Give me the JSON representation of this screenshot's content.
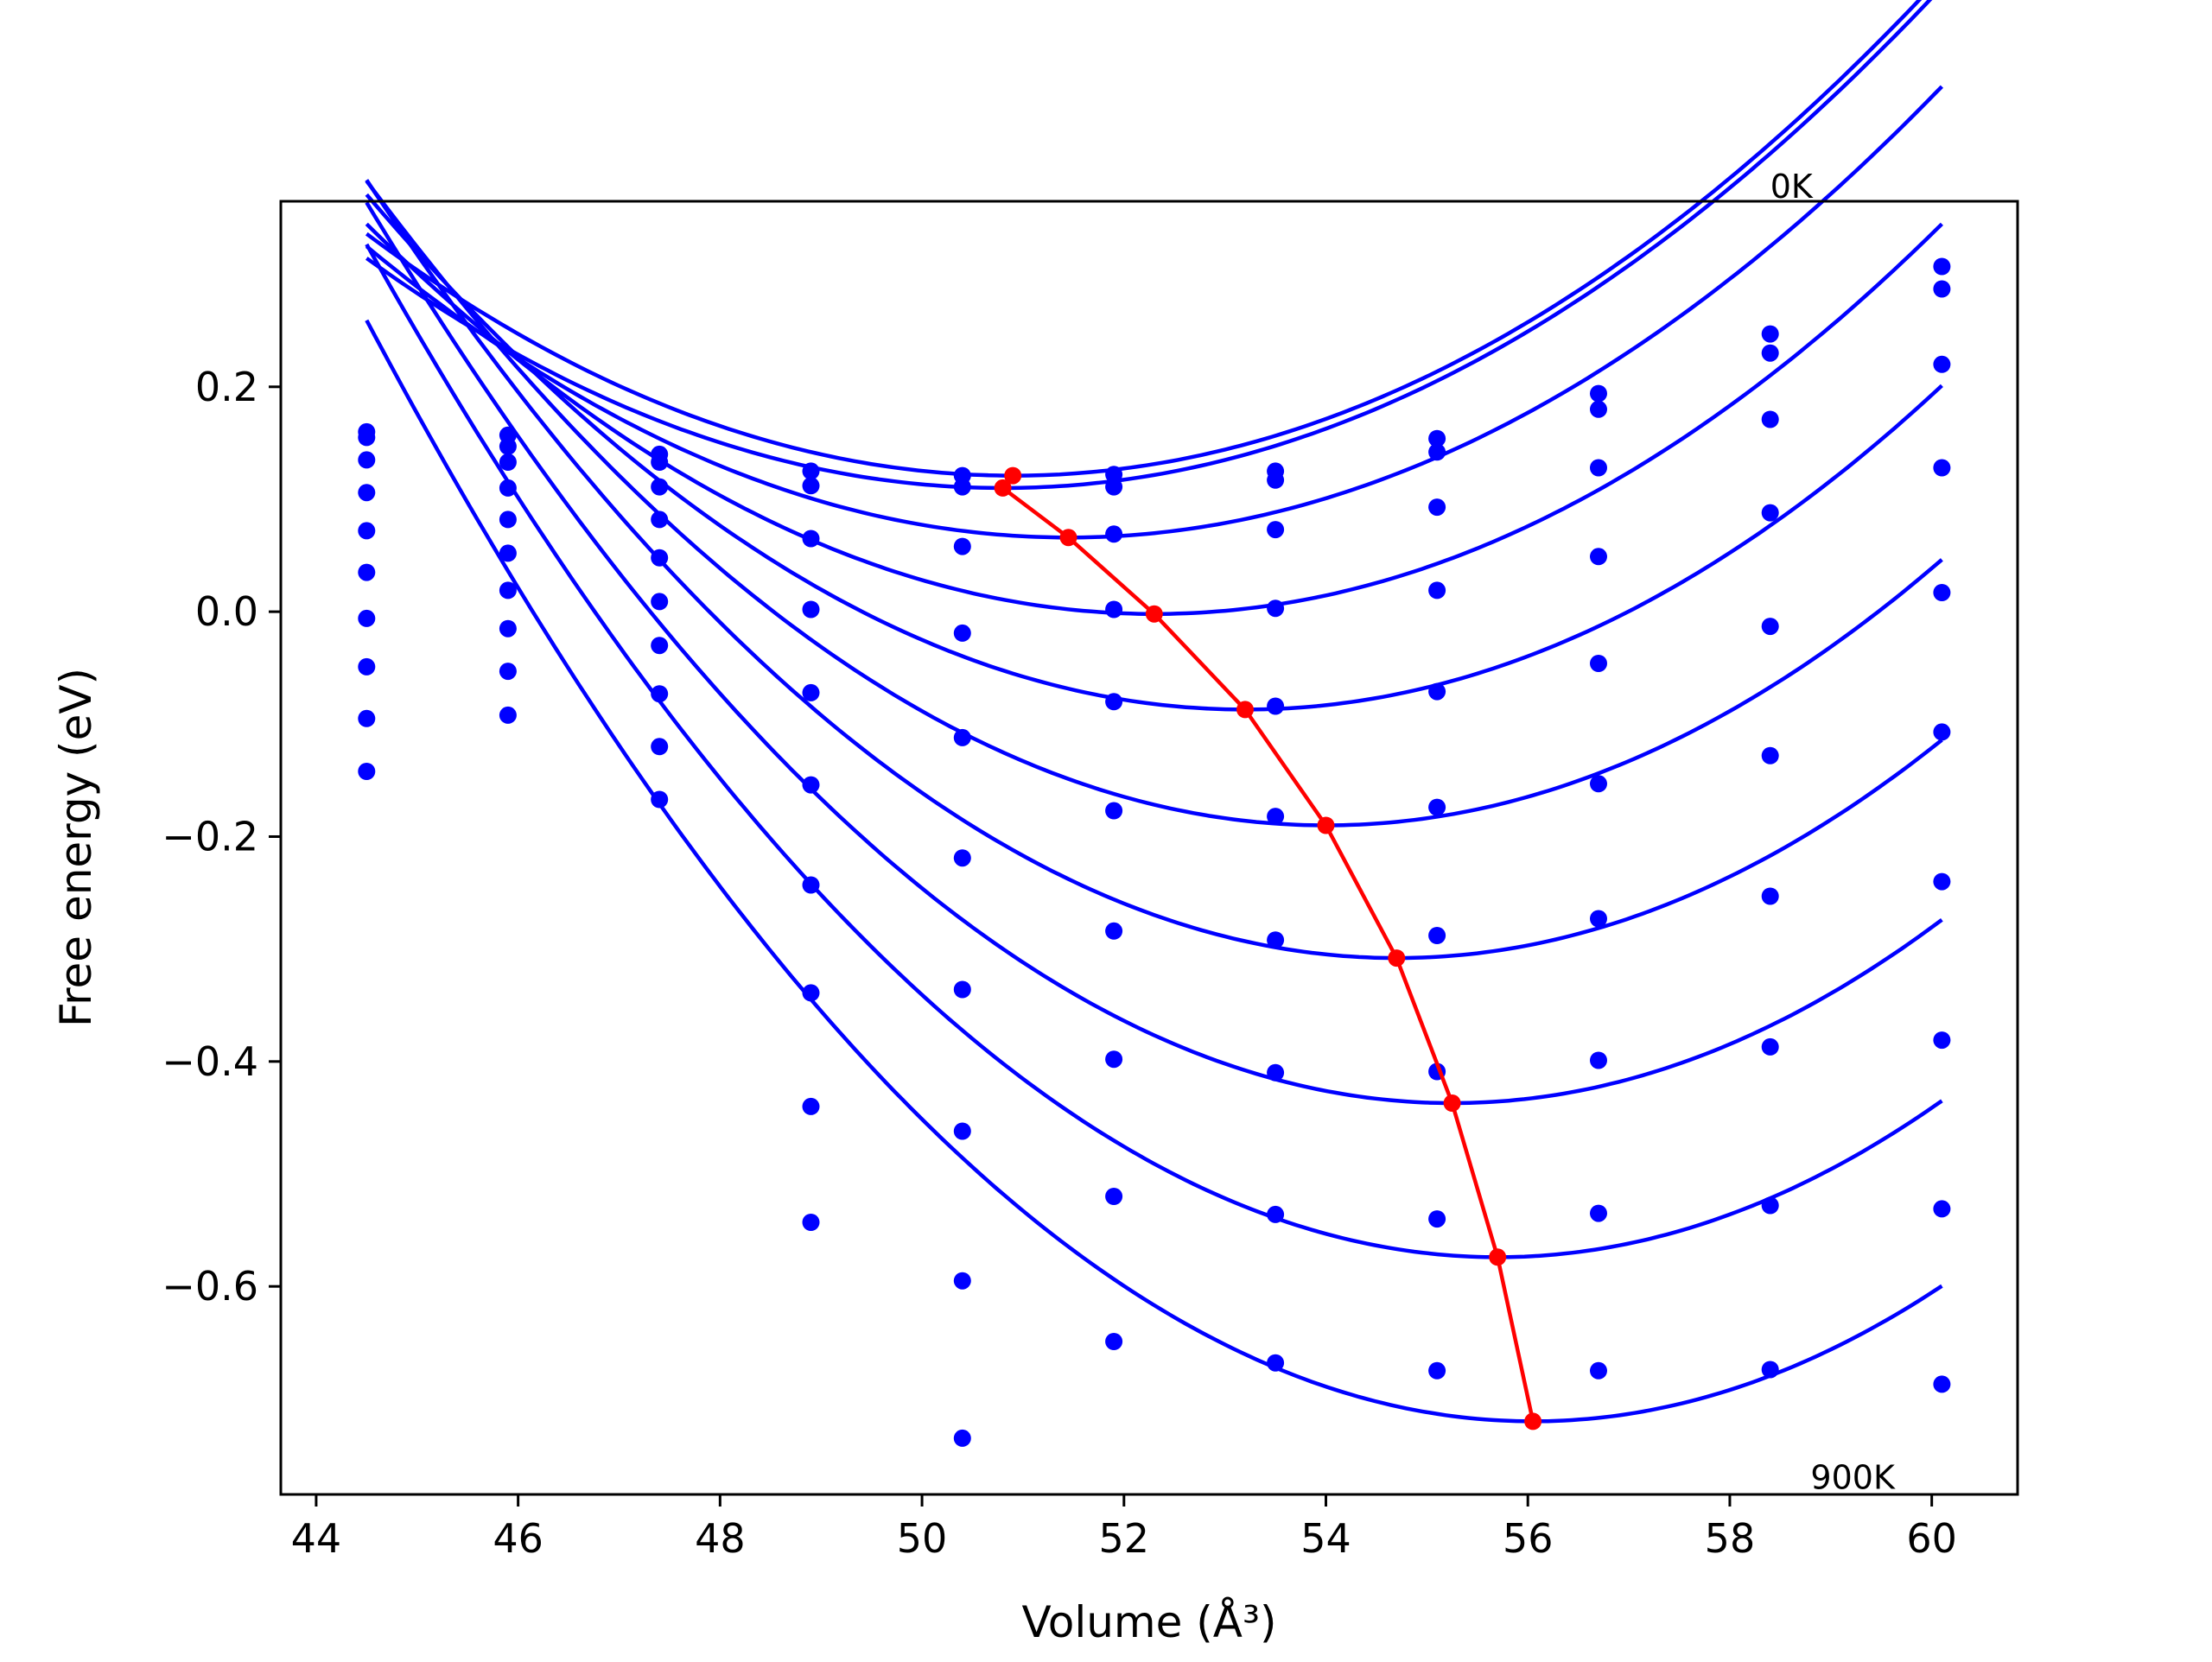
{
  "chart_data": {
    "type": "line",
    "xlabel": "Volume (Å³)",
    "ylabel": "Free energy (eV)",
    "xlim": [
      43.65,
      60.85
    ],
    "ylim": [
      -0.785,
      0.365
    ],
    "x_ticks": [
      44,
      46,
      48,
      50,
      52,
      54,
      56,
      58,
      60
    ],
    "y_ticks": [
      -0.6,
      -0.4,
      -0.2,
      0.0,
      0.2
    ],
    "x_tick_labels": [
      "44",
      "46",
      "48",
      "50",
      "52",
      "54",
      "56",
      "58",
      "60"
    ],
    "y_tick_labels": [
      "−0.6",
      "−0.4",
      "−0.2",
      "0.0",
      "0.2"
    ],
    "grid": false,
    "annotations": [
      {
        "text": "0K",
        "x": 58.4,
        "y": 0.368
      },
      {
        "text": "900K",
        "x": 58.8,
        "y": -0.78
      }
    ],
    "curve_color": "#0000ff",
    "min_line_color": "#ff0000",
    "volumes": [
      44.5,
      45.9,
      47.4,
      48.9,
      50.4,
      51.9,
      53.5,
      55.1,
      56.7,
      58.4,
      60.1
    ],
    "curves": [
      {
        "min_v": 50.9,
        "min_f": 0.121,
        "k": 0.00525
      },
      {
        "min_v": 50.8,
        "min_f": 0.11,
        "k": 0.00515
      },
      {
        "min_v": 51.45,
        "min_f": 0.066,
        "k": 0.00536
      },
      {
        "min_v": 52.3,
        "min_f": -0.002,
        "k": 0.0057
      },
      {
        "min_v": 53.2,
        "min_f": -0.087,
        "k": 0.00605
      },
      {
        "min_v": 54.0,
        "min_f": -0.19,
        "k": 0.00635
      },
      {
        "min_v": 54.7,
        "min_f": -0.308,
        "k": 0.00665
      },
      {
        "min_v": 55.25,
        "min_f": -0.437,
        "k": 0.00693
      },
      {
        "min_v": 55.7,
        "min_f": -0.574,
        "k": 0.00718
      },
      {
        "min_v": 56.05,
        "min_f": -0.72,
        "k": 0.00734
      }
    ],
    "points": [
      [
        0.16,
        0.157,
        0.14,
        0.125,
        0.121,
        0.122,
        0.125,
        0.154,
        0.194,
        0.247,
        0.307
      ],
      [
        0.155,
        0.147,
        0.133,
        0.112,
        0.111,
        0.111,
        0.117,
        0.142,
        0.18,
        0.23,
        0.287
      ],
      [
        0.135,
        0.133,
        0.111,
        0.065,
        0.058,
        0.069,
        0.073,
        0.093,
        0.128,
        0.171,
        0.22
      ],
      [
        0.106,
        0.11,
        0.082,
        0.002,
        -0.019,
        0.002,
        0.003,
        0.019,
        0.049,
        0.088,
        0.128
      ],
      [
        0.072,
        0.082,
        0.048,
        -0.072,
        -0.112,
        -0.08,
        -0.084,
        -0.071,
        -0.046,
        -0.013,
        0.017
      ],
      [
        0.035,
        0.052,
        0.009,
        -0.154,
        -0.219,
        -0.177,
        -0.182,
        -0.174,
        -0.153,
        -0.128,
        -0.107
      ],
      [
        -0.006,
        0.019,
        -0.03,
        -0.243,
        -0.336,
        -0.284,
        -0.292,
        -0.288,
        -0.273,
        -0.253,
        -0.24
      ],
      [
        -0.049,
        -0.015,
        -0.073,
        -0.339,
        -0.462,
        -0.398,
        -0.41,
        -0.409,
        -0.399,
        -0.387,
        -0.381
      ],
      [
        -0.095,
        -0.053,
        -0.12,
        -0.44,
        -0.595,
        -0.52,
        -0.536,
        -0.54,
        -0.535,
        -0.528,
        -0.531
      ],
      [
        -0.142,
        -0.092,
        -0.167,
        -0.543,
        -0.735,
        -0.649,
        -0.668,
        -0.675,
        -0.675,
        -0.674,
        -0.687
      ]
    ]
  }
}
